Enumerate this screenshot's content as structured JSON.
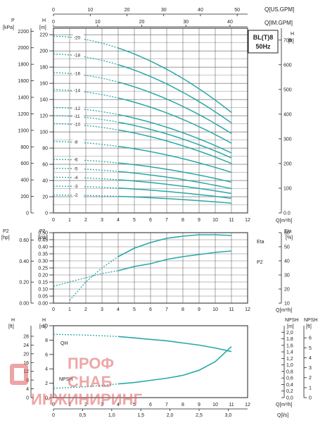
{
  "header": {
    "top_axis_us_label": "Q[US.GPM]",
    "top_axis_im_label": "Q[IM.GPM]",
    "top_axis_us_ticks": [
      "0",
      "10",
      "20",
      "30",
      "40",
      "50"
    ],
    "top_axis_im_ticks": [
      "0",
      "10",
      "20",
      "30",
      "40"
    ]
  },
  "model_badge": {
    "line1": "BL(T)8",
    "line2": "50Hz"
  },
  "colors": {
    "curve": "#2aa8a8",
    "grid": "#1a1a1a",
    "text": "#222222",
    "watermark": "#e06060"
  },
  "watermark": {
    "line1": "ПРОФ",
    "line2": "СНАБ",
    "line3": "ИНЖИНИРИНГ"
  },
  "chart_data": [
    {
      "type": "line",
      "title": "",
      "xlabel": "Q[m³/h]",
      "x_ticks": [
        "0",
        "1",
        "2",
        "3",
        "4",
        "5",
        "6",
        "7",
        "8",
        "9",
        "10",
        "11",
        "12"
      ],
      "xlim": [
        0,
        12
      ],
      "left_axis": {
        "kpa_unit_top": "P",
        "kpa_unit": "[kPa]",
        "kpa_ticks": [
          "0",
          "200",
          "400",
          "600",
          "800",
          "1000",
          "1200",
          "1400",
          "1600",
          "1800",
          "2000",
          "2200"
        ],
        "m_unit_top": "H",
        "m_unit": "[m]",
        "m_ticks": [
          "0",
          "20",
          "40",
          "60",
          "80",
          "100",
          "120",
          "140",
          "160",
          "180",
          "200",
          "220"
        ]
      },
      "right_axis": {
        "unit_top": "H",
        "unit": "[ft]",
        "ticks": [
          "0.0",
          "100",
          "200",
          "300",
          "400",
          "500",
          "600",
          "700"
        ]
      },
      "ylim_m": [
        0,
        228
      ],
      "grid": true,
      "series": [
        {
          "name": "-2",
          "h0": 22,
          "h11": 12
        },
        {
          "name": "-3",
          "h0": 33,
          "h11": 18
        },
        {
          "name": "-4",
          "h0": 44,
          "h11": 24
        },
        {
          "name": "-5",
          "h0": 55,
          "h11": 30
        },
        {
          "name": "-6",
          "h0": 66,
          "h11": 38
        },
        {
          "name": "-8",
          "h0": 88,
          "h11": 50
        },
        {
          "name": "-10",
          "h0": 110,
          "h11": 61
        },
        {
          "name": "-11",
          "h0": 120,
          "h11": 68
        },
        {
          "name": "-12",
          "h0": 130,
          "h11": 74
        },
        {
          "name": "-14",
          "h0": 152,
          "h11": 86
        },
        {
          "name": "-16",
          "h0": 173,
          "h11": 98
        },
        {
          "name": "-18",
          "h0": 196,
          "h11": 111
        },
        {
          "name": "-20",
          "h0": 218,
          "h11": 124
        }
      ]
    },
    {
      "type": "line",
      "title": "",
      "xlabel": "Q[m³/h]",
      "x_ticks": [
        "0",
        "1",
        "2",
        "3",
        "4",
        "5",
        "6",
        "7",
        "8",
        "9",
        "10",
        "11",
        "12"
      ],
      "xlim": [
        0,
        12
      ],
      "left_axis": {
        "hp_unit_top": "P2",
        "hp_unit": "[hp]",
        "hp_ticks": [
          "0.00",
          "0.20",
          "0.40",
          "0.60"
        ],
        "kw_unit_top": "P2",
        "kw_unit": "[kW]",
        "kw_ticks": [
          "0.00",
          "0.05",
          "0.10",
          "0.15",
          "0.20",
          "0.25",
          "0.30",
          "0.35",
          "0.40",
          "0.45",
          "0.50"
        ]
      },
      "right_axis": {
        "unit_top": "Eta",
        "unit": "[%]",
        "ticks": [
          "10",
          "20",
          "30",
          "40",
          "50",
          "60"
        ]
      },
      "ylim_kw": [
        0,
        0.5
      ],
      "ylim_eta": [
        10,
        60
      ],
      "grid": true,
      "series": [
        {
          "name": "Eta",
          "x": [
            1,
            2,
            3,
            4,
            5,
            6,
            7,
            8,
            9,
            10,
            11
          ],
          "y_eta": [
            12,
            25,
            35,
            43,
            49,
            53,
            56,
            57.5,
            58.5,
            58.5,
            58
          ]
        },
        {
          "name": "P2",
          "x": [
            0,
            1,
            2,
            3,
            4,
            5,
            6,
            7,
            8,
            9,
            10,
            11
          ],
          "y_kw": [
            0.12,
            0.15,
            0.18,
            0.21,
            0.23,
            0.26,
            0.28,
            0.31,
            0.33,
            0.345,
            0.36,
            0.37
          ]
        }
      ]
    },
    {
      "type": "line",
      "title": "",
      "xlabel": "Q[m³/h]",
      "x_ticks": [
        "0",
        "1",
        "2",
        "3",
        "4",
        "5",
        "6",
        "7",
        "8",
        "9",
        "10",
        "11",
        "12"
      ],
      "xlim": [
        0,
        12
      ],
      "x2label": "Q[l/s]",
      "x2_ticks": [
        "0",
        "0,5",
        "1,0",
        "1,5",
        "2,0",
        "2,5",
        "3,0"
      ],
      "left_axis": {
        "ft_unit_top": "H",
        "ft_unit": "[ft]",
        "ft_ticks": [
          "0",
          "4",
          "8",
          "12",
          "16",
          "20",
          "24",
          "28"
        ],
        "m_unit_top": "H",
        "m_unit": "[m]",
        "m_ticks": [
          "0",
          "2",
          "4",
          "6",
          "8",
          "10"
        ]
      },
      "right_axis": {
        "m_unit_top": "NPSH",
        "m_unit": "[m]",
        "m_ticks": [
          "0,0",
          "0,2",
          "0,4",
          "0,6",
          "0,8",
          "1,0",
          "1,2",
          "1,4",
          "1,6",
          "1,8",
          "2,0"
        ],
        "ft_unit_top": "NPSH",
        "ft_unit": "[ft]",
        "ft_ticks": [
          "0",
          "1",
          "2",
          "3",
          "4",
          "5",
          "6"
        ]
      },
      "ylim_m": [
        0,
        10
      ],
      "grid": false,
      "series": [
        {
          "name": "QH",
          "x": [
            0,
            2,
            4,
            5,
            6,
            7,
            8,
            9,
            10,
            11
          ],
          "y_m": [
            8.8,
            8.7,
            8.5,
            8.3,
            8.1,
            7.9,
            7.6,
            7.3,
            6.9,
            6.4
          ]
        },
        {
          "name": "NPSH",
          "x": [
            0,
            2,
            4,
            5,
            6,
            7,
            8,
            9,
            10,
            11
          ],
          "y_m": [
            1.3,
            1.5,
            1.9,
            2.1,
            2.4,
            2.7,
            3.1,
            3.8,
            5.0,
            7.1
          ]
        }
      ]
    }
  ]
}
